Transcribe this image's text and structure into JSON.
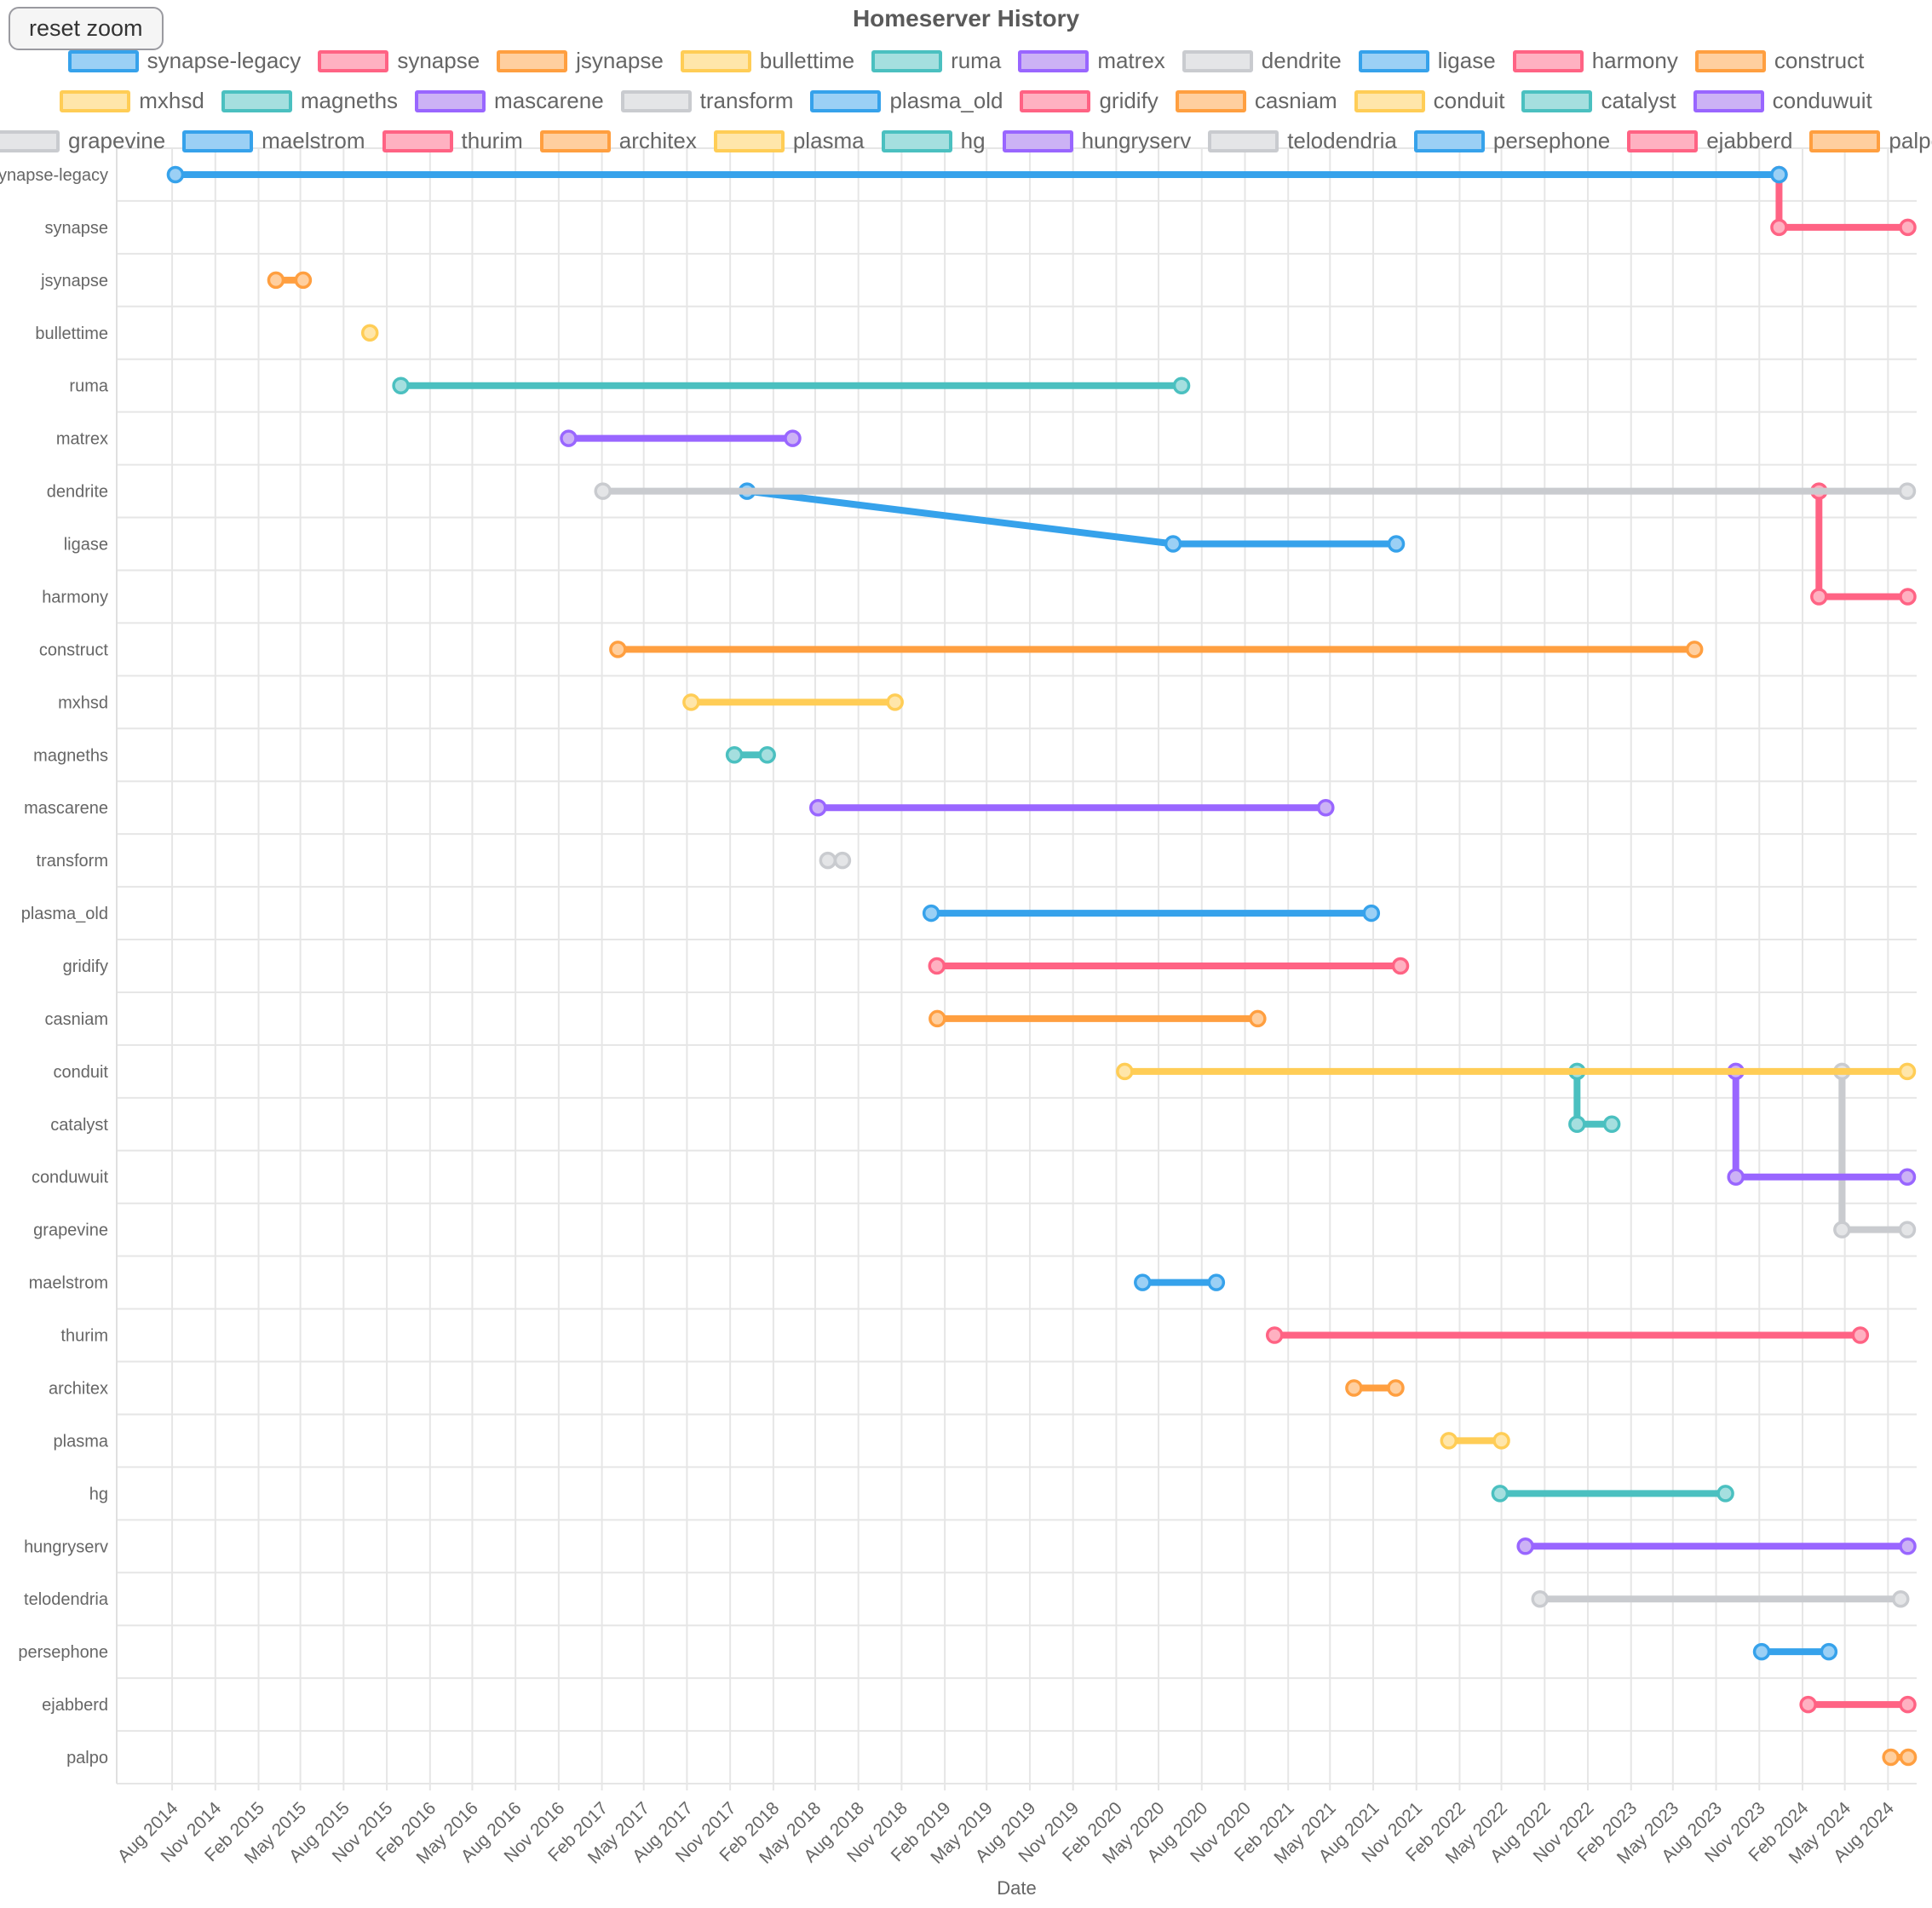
{
  "header": {
    "reset_zoom_label": "reset zoom"
  },
  "colors": {
    "blue": {
      "stroke": "#36a2eb",
      "fill": "#9bd0f5"
    },
    "pink": {
      "stroke": "#ff6384",
      "fill": "#ffb1c1"
    },
    "orange": {
      "stroke": "#ff9f40",
      "fill": "#ffcf9f"
    },
    "yellow": {
      "stroke": "#ffcd56",
      "fill": "#ffe6aa"
    },
    "teal": {
      "stroke": "#4bc0c0",
      "fill": "#a5dfdf"
    },
    "purple": {
      "stroke": "#9966ff",
      "fill": "#ccb2f5"
    },
    "grey": {
      "stroke": "#c9cbcf",
      "fill": "#e4e5e7"
    }
  },
  "chart_data": {
    "type": "line-timeline",
    "title": "Homeserver History",
    "xlabel": "Date",
    "legend_position": "top",
    "grid": true,
    "x_domain": {
      "min": "2014-04-05",
      "max": "2024-10-01"
    },
    "x_ticks": [
      "Aug 2014",
      "Nov 2014",
      "Feb 2015",
      "May 2015",
      "Aug 2015",
      "Nov 2015",
      "Feb 2016",
      "May 2016",
      "Aug 2016",
      "Nov 2016",
      "Feb 2017",
      "May 2017",
      "Aug 2017",
      "Nov 2017",
      "Feb 2018",
      "May 2018",
      "Aug 2018",
      "Nov 2018",
      "Feb 2019",
      "May 2019",
      "Aug 2019",
      "Nov 2019",
      "Feb 2020",
      "May 2020",
      "Aug 2020",
      "Nov 2020",
      "Feb 2021",
      "May 2021",
      "Aug 2021",
      "Nov 2021",
      "Feb 2022",
      "May 2022",
      "Aug 2022",
      "Nov 2022",
      "Feb 2023",
      "May 2023",
      "Aug 2023",
      "Nov 2023",
      "Feb 2024",
      "May 2024",
      "Aug 2024"
    ],
    "rows": [
      "synapse-legacy",
      "synapse",
      "jsynapse",
      "bullettime",
      "ruma",
      "matrex",
      "dendrite",
      "ligase",
      "harmony",
      "construct",
      "mxhsd",
      "magneths",
      "mascarene",
      "transform",
      "plasma_old",
      "gridify",
      "casniam",
      "conduit",
      "catalyst",
      "conduwuit",
      "grapevine",
      "maelstrom",
      "thurim",
      "architex",
      "plasma",
      "hg",
      "hungryserv",
      "telodendria",
      "persephone",
      "ejabberd",
      "palpo"
    ],
    "series": [
      {
        "name": "synapse-legacy",
        "color": "blue",
        "points": [
          {
            "date": "2014-08-08",
            "row": "synapse-legacy"
          },
          {
            "date": "2023-12-13",
            "row": "synapse-legacy"
          }
        ]
      },
      {
        "name": "synapse",
        "color": "pink",
        "points": [
          {
            "date": "2023-12-13",
            "row": "synapse-legacy"
          },
          {
            "date": "2023-12-13",
            "row": "synapse"
          },
          {
            "date": "2024-09-12",
            "row": "synapse"
          }
        ]
      },
      {
        "name": "jsynapse",
        "color": "orange",
        "points": [
          {
            "date": "2015-03-10",
            "row": "jsynapse"
          },
          {
            "date": "2015-05-07",
            "row": "jsynapse"
          }
        ]
      },
      {
        "name": "bullettime",
        "color": "yellow",
        "points": [
          {
            "date": "2015-09-26",
            "row": "bullettime"
          }
        ]
      },
      {
        "name": "ruma",
        "color": "teal",
        "points": [
          {
            "date": "2015-12-01",
            "row": "ruma"
          },
          {
            "date": "2020-06-19",
            "row": "ruma"
          }
        ]
      },
      {
        "name": "matrex",
        "color": "purple",
        "points": [
          {
            "date": "2016-11-22",
            "row": "matrex"
          },
          {
            "date": "2018-03-14",
            "row": "matrex"
          }
        ]
      },
      {
        "name": "dendrite",
        "color": "grey",
        "points": [
          {
            "date": "2017-02-03",
            "row": "dendrite"
          },
          {
            "date": "2024-09-11",
            "row": "dendrite"
          }
        ]
      },
      {
        "name": "ligase",
        "color": "blue",
        "points": [
          {
            "date": "2017-12-07",
            "row": "dendrite"
          },
          {
            "date": "2020-06-01",
            "row": "ligase"
          },
          {
            "date": "2021-09-19",
            "row": "ligase"
          }
        ]
      },
      {
        "name": "harmony",
        "color": "pink",
        "points": [
          {
            "date": "2024-03-07",
            "row": "dendrite"
          },
          {
            "date": "2024-03-07",
            "row": "harmony"
          },
          {
            "date": "2024-09-12",
            "row": "harmony"
          }
        ]
      },
      {
        "name": "construct",
        "color": "orange",
        "points": [
          {
            "date": "2017-03-07",
            "row": "construct"
          },
          {
            "date": "2023-06-16",
            "row": "construct"
          }
        ]
      },
      {
        "name": "mxhsd",
        "color": "yellow",
        "points": [
          {
            "date": "2017-08-10",
            "row": "mxhsd"
          },
          {
            "date": "2018-10-18",
            "row": "mxhsd"
          }
        ]
      },
      {
        "name": "magneths",
        "color": "teal",
        "points": [
          {
            "date": "2017-11-10",
            "row": "magneths"
          },
          {
            "date": "2018-01-19",
            "row": "magneths"
          }
        ]
      },
      {
        "name": "mascarene",
        "color": "purple",
        "points": [
          {
            "date": "2018-05-07",
            "row": "mascarene"
          },
          {
            "date": "2021-04-22",
            "row": "mascarene"
          }
        ]
      },
      {
        "name": "transform",
        "color": "grey",
        "points": [
          {
            "date": "2018-05-28",
            "row": "transform"
          },
          {
            "date": "2018-06-28",
            "row": "transform"
          }
        ]
      },
      {
        "name": "plasma_old",
        "color": "blue",
        "points": [
          {
            "date": "2019-01-03",
            "row": "plasma_old"
          },
          {
            "date": "2021-07-28",
            "row": "plasma_old"
          }
        ]
      },
      {
        "name": "gridify",
        "color": "pink",
        "points": [
          {
            "date": "2019-01-15",
            "row": "gridify"
          },
          {
            "date": "2021-09-28",
            "row": "gridify"
          }
        ]
      },
      {
        "name": "casniam",
        "color": "orange",
        "points": [
          {
            "date": "2019-01-16",
            "row": "casniam"
          },
          {
            "date": "2020-11-28",
            "row": "casniam"
          }
        ]
      },
      {
        "name": "conduit",
        "color": "yellow",
        "points": [
          {
            "date": "2020-02-19",
            "row": "conduit"
          },
          {
            "date": "2024-09-11",
            "row": "conduit"
          }
        ]
      },
      {
        "name": "catalyst",
        "color": "teal",
        "points": [
          {
            "date": "2022-10-09",
            "row": "conduit"
          },
          {
            "date": "2022-10-09",
            "row": "catalyst"
          },
          {
            "date": "2022-12-22",
            "row": "catalyst"
          }
        ]
      },
      {
        "name": "conduwuit",
        "color": "purple",
        "points": [
          {
            "date": "2023-09-12",
            "row": "conduit"
          },
          {
            "date": "2023-09-12",
            "row": "conduwuit"
          },
          {
            "date": "2024-09-11",
            "row": "conduwuit"
          }
        ]
      },
      {
        "name": "grapevine",
        "color": "grey",
        "points": [
          {
            "date": "2024-04-25",
            "row": "conduit"
          },
          {
            "date": "2024-04-25",
            "row": "grapevine"
          },
          {
            "date": "2024-09-11",
            "row": "grapevine"
          }
        ]
      },
      {
        "name": "maelstrom",
        "color": "blue",
        "points": [
          {
            "date": "2020-03-28",
            "row": "maelstrom"
          },
          {
            "date": "2020-09-01",
            "row": "maelstrom"
          }
        ]
      },
      {
        "name": "thurim",
        "color": "pink",
        "points": [
          {
            "date": "2021-01-03",
            "row": "thurim"
          },
          {
            "date": "2024-06-03",
            "row": "thurim"
          }
        ]
      },
      {
        "name": "architex",
        "color": "orange",
        "points": [
          {
            "date": "2021-06-21",
            "row": "architex"
          },
          {
            "date": "2021-09-18",
            "row": "architex"
          }
        ]
      },
      {
        "name": "plasma",
        "color": "yellow",
        "points": [
          {
            "date": "2022-01-09",
            "row": "plasma"
          },
          {
            "date": "2022-05-01",
            "row": "plasma"
          }
        ]
      },
      {
        "name": "hg",
        "color": "teal",
        "points": [
          {
            "date": "2022-04-28",
            "row": "hg"
          },
          {
            "date": "2023-08-21",
            "row": "hg"
          }
        ]
      },
      {
        "name": "hungryserv",
        "color": "purple",
        "points": [
          {
            "date": "2022-06-21",
            "row": "hungryserv"
          },
          {
            "date": "2024-09-12",
            "row": "hungryserv"
          }
        ]
      },
      {
        "name": "telodendria",
        "color": "grey",
        "points": [
          {
            "date": "2022-07-22",
            "row": "telodendria"
          },
          {
            "date": "2024-08-28",
            "row": "telodendria"
          }
        ]
      },
      {
        "name": "persephone",
        "color": "blue",
        "points": [
          {
            "date": "2023-11-06",
            "row": "persephone"
          },
          {
            "date": "2024-03-28",
            "row": "persephone"
          }
        ]
      },
      {
        "name": "ejabberd",
        "color": "pink",
        "points": [
          {
            "date": "2024-02-13",
            "row": "ejabberd"
          },
          {
            "date": "2024-09-12",
            "row": "ejabberd"
          }
        ]
      },
      {
        "name": "palpo",
        "color": "orange",
        "points": [
          {
            "date": "2024-08-07",
            "row": "palpo"
          },
          {
            "date": "2024-09-13",
            "row": "palpo"
          }
        ]
      }
    ]
  }
}
